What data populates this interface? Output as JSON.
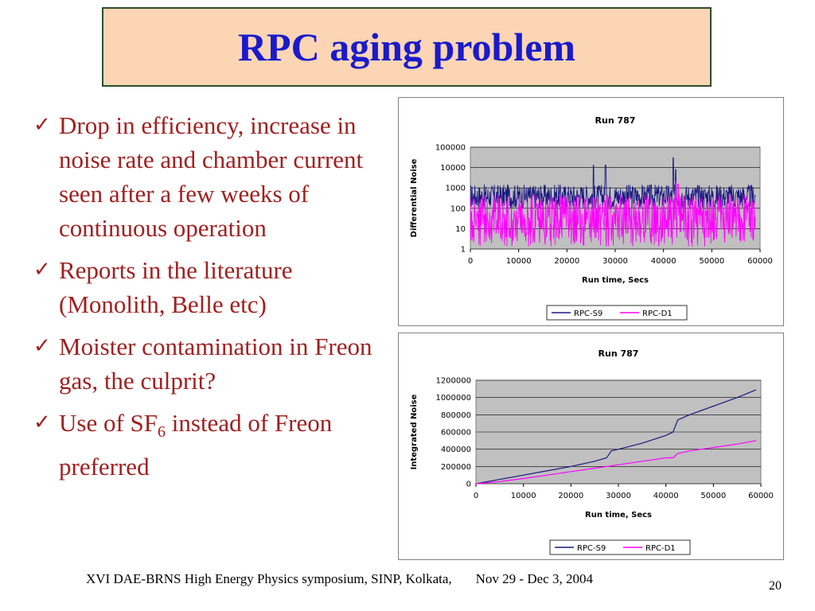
{
  "slide": {
    "title": "RPC aging problem",
    "bullets": [
      {
        "text": "Drop in efficiency, increase in noise rate and chamber current seen after a  few weeks of continuous operation"
      },
      {
        "text": "Reports in the literature (Monolith, Belle etc)"
      },
      {
        "text": "Moister contamination in Freon gas, the culprit?"
      },
      {
        "text_before": "Use of SF",
        "subscript": "6",
        "text_after": " instead of Freon preferred"
      }
    ],
    "footer_left": "XVI DAE-BRNS High Energy Physics symposium, SINP, Kolkata,",
    "footer_date": "Nov 29 - Dec 3, 2004",
    "page_number": "20"
  },
  "chart_data": [
    {
      "type": "line",
      "title": "Run 787",
      "xlabel": "Run time, Secs",
      "ylabel": "Differential Noise",
      "xlim": [
        0,
        60000
      ],
      "ylim": [
        1,
        100000
      ],
      "yscale": "log",
      "x_ticks": [
        "0",
        "10000",
        "20000",
        "30000",
        "40000",
        "50000",
        "60000"
      ],
      "y_ticks": [
        "1",
        "10",
        "100",
        "1000",
        "10000",
        "100000"
      ],
      "grid": true,
      "legend": "bottom",
      "series": [
        {
          "name": "RPC-S9",
          "color": "#1a1a80",
          "typical_range": [
            100,
            1500
          ],
          "spikes": [
            [
              25500,
              13000
            ],
            [
              28000,
              13000
            ],
            [
              42000,
              30000
            ],
            [
              42500,
              8000
            ]
          ],
          "x_end": 59000
        },
        {
          "name": "RPC-D1",
          "color": "#ff00ff",
          "typical_range": [
            5,
            500
          ],
          "spikes": [
            [
              42500,
              2000
            ],
            [
              43000,
              1500
            ]
          ],
          "x_end": 59000
        }
      ]
    },
    {
      "type": "line",
      "title": "Run 787",
      "xlabel": "Run time, Secs",
      "ylabel": "Integrated Noise",
      "xlim": [
        0,
        60000
      ],
      "ylim": [
        0,
        1200000
      ],
      "x_ticks": [
        "0",
        "10000",
        "20000",
        "30000",
        "40000",
        "50000",
        "60000"
      ],
      "y_ticks": [
        "0",
        "200000",
        "400000",
        "600000",
        "800000",
        "1000000",
        "1200000"
      ],
      "grid": true,
      "legend": "bottom",
      "series": [
        {
          "name": "RPC-S9",
          "color": "#1a1a80",
          "x": [
            0,
            5000,
            10000,
            15000,
            20000,
            25000,
            27500,
            28500,
            30000,
            35000,
            40000,
            41500,
            42500,
            45000,
            50000,
            55000,
            59000
          ],
          "y": [
            0,
            50000,
            100000,
            150000,
            200000,
            260000,
            300000,
            380000,
            400000,
            470000,
            560000,
            600000,
            740000,
            800000,
            900000,
            1000000,
            1090000
          ]
        },
        {
          "name": "RPC-D1",
          "color": "#ff00ff",
          "x": [
            0,
            5000,
            10000,
            15000,
            20000,
            25000,
            30000,
            35000,
            40000,
            41500,
            42500,
            45000,
            50000,
            55000,
            59000
          ],
          "y": [
            0,
            25000,
            60000,
            100000,
            140000,
            180000,
            220000,
            260000,
            300000,
            300000,
            350000,
            380000,
            420000,
            460000,
            500000
          ]
        }
      ]
    }
  ]
}
